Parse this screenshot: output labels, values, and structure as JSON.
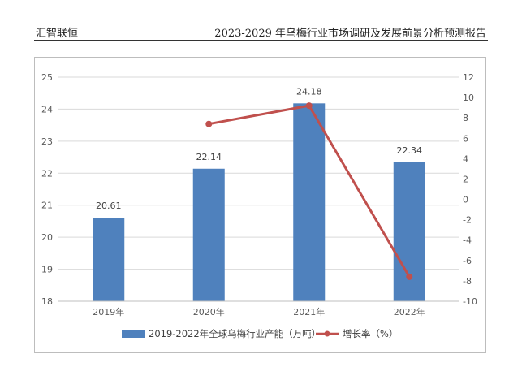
{
  "header": {
    "left": "汇智联恒",
    "right": "2023-2029 年乌梅行业市场调研及发展前景分析预测报告"
  },
  "chart_data": {
    "type": "bar",
    "categories": [
      "2019年",
      "2020年",
      "2021年",
      "2022年"
    ],
    "series": [
      {
        "name": "2019-2022年全球乌梅行业产能（万吨）",
        "type": "bar",
        "axis": "left",
        "color": "#4f81bd",
        "values": [
          20.61,
          22.14,
          24.18,
          22.34
        ],
        "labels": [
          "20.61",
          "22.14",
          "24.18",
          "22.34"
        ]
      },
      {
        "name": "增长率（%）",
        "type": "line",
        "axis": "right",
        "color": "#c0504d",
        "values": [
          null,
          7.4,
          9.2,
          -7.6
        ]
      }
    ],
    "ylim_left": [
      18,
      25
    ],
    "yticks_left": [
      "18",
      "19",
      "20",
      "21",
      "22",
      "23",
      "24",
      "25"
    ],
    "ylim_right": [
      -10,
      12
    ],
    "yticks_right": [
      "-10",
      "-8",
      "-6",
      "-4",
      "-2",
      "0",
      "2",
      "4",
      "6",
      "8",
      "10",
      "12"
    ],
    "legend_position": "bottom",
    "grid": true
  }
}
